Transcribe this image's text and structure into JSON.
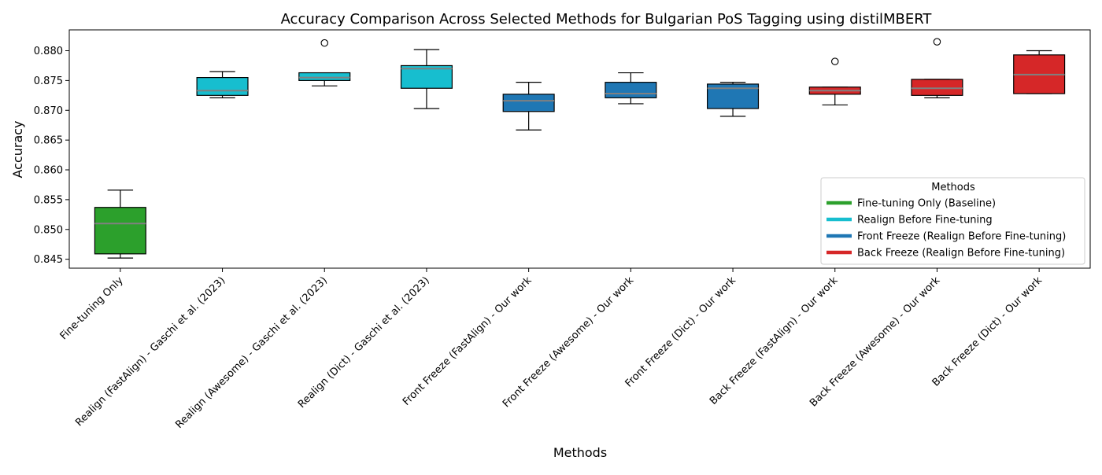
{
  "chart_data": {
    "type": "box",
    "title": "Accuracy Comparison Across Selected Methods for Bulgarian PoS Tagging using distilMBERT",
    "xlabel": "Methods",
    "ylabel": "Accuracy",
    "ylim": [
      0.8435,
      0.8835
    ],
    "yticks": [
      "0.845",
      "0.850",
      "0.855",
      "0.860",
      "0.865",
      "0.870",
      "0.875",
      "0.880"
    ],
    "grid": false,
    "categories": [
      "Fine-tuning Only",
      "Realign (FastAlign) - Gaschi et al. (2023)",
      "Realign (Awesome) - Gaschi et al. (2023)",
      "Realign (Dict) - Gaschi et al. (2023)",
      "Front Freeze (FastAlign) - Our work",
      "Front Freeze (Awesome) - Our work",
      "Front Freeze (Dict) - Our work",
      "Back Freeze (FastAlign) - Our work",
      "Back Freeze (Awesome) - Our work",
      "Back Freeze (Dict) - Our work"
    ],
    "boxes": [
      {
        "whisker_low": 0.8452,
        "q1": 0.8459,
        "median": 0.851,
        "q3": 0.8537,
        "whisker_high": 0.8566,
        "outliers": [],
        "group": 0
      },
      {
        "whisker_low": 0.8721,
        "q1": 0.8725,
        "median": 0.8733,
        "q3": 0.8755,
        "whisker_high": 0.8765,
        "outliers": [],
        "group": 1
      },
      {
        "whisker_low": 0.8741,
        "q1": 0.875,
        "median": 0.8755,
        "q3": 0.8763,
        "whisker_high": 0.8763,
        "outliers": [
          0.8813
        ],
        "group": 1
      },
      {
        "whisker_low": 0.8703,
        "q1": 0.8737,
        "median": 0.877,
        "q3": 0.8775,
        "whisker_high": 0.8802,
        "outliers": [],
        "group": 1
      },
      {
        "whisker_low": 0.8667,
        "q1": 0.8698,
        "median": 0.8716,
        "q3": 0.8727,
        "whisker_high": 0.8747,
        "outliers": [],
        "group": 2
      },
      {
        "whisker_low": 0.8711,
        "q1": 0.8721,
        "median": 0.8728,
        "q3": 0.8747,
        "whisker_high": 0.8763,
        "outliers": [],
        "group": 2
      },
      {
        "whisker_low": 0.869,
        "q1": 0.8703,
        "median": 0.8737,
        "q3": 0.8744,
        "whisker_high": 0.8747,
        "outliers": [],
        "group": 2
      },
      {
        "whisker_low": 0.8709,
        "q1": 0.8727,
        "median": 0.8733,
        "q3": 0.8739,
        "whisker_high": 0.8739,
        "outliers": [
          0.8782
        ],
        "group": 3
      },
      {
        "whisker_low": 0.8721,
        "q1": 0.8725,
        "median": 0.8737,
        "q3": 0.8752,
        "whisker_high": 0.8752,
        "outliers": [
          0.8815
        ],
        "group": 3
      },
      {
        "whisker_low": 0.8728,
        "q1": 0.8728,
        "median": 0.876,
        "q3": 0.8793,
        "whisker_high": 0.88,
        "outliers": [],
        "group": 3
      }
    ],
    "legend": {
      "title": "Methods",
      "placement": "lower-right",
      "entries": [
        {
          "label": "Fine-tuning Only (Baseline)",
          "color": "#2ca02c"
        },
        {
          "label": "Realign Before Fine-tuning",
          "color": "#17becf"
        },
        {
          "label": "Front Freeze (Realign Before Fine-tuning)",
          "color": "#1f77b4"
        },
        {
          "label": "Back Freeze (Realign Before Fine-tuning)",
          "color": "#d62728"
        }
      ]
    },
    "colors": {
      "median_line": "#808080",
      "box_edge": "#000000"
    }
  }
}
